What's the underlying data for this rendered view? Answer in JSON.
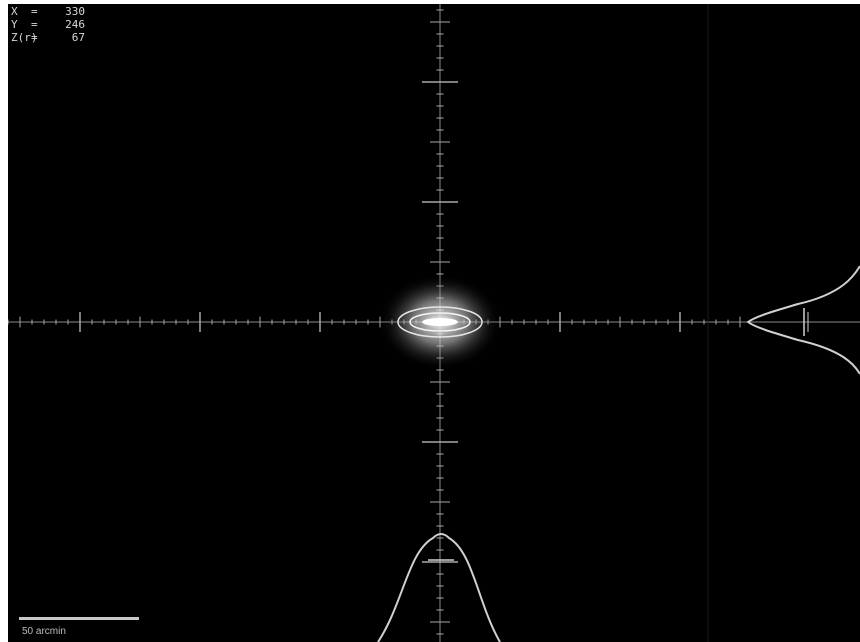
{
  "readout": [
    {
      "key": "X",
      "value": "330"
    },
    {
      "key": "Y",
      "value": "246"
    },
    {
      "key": "Z(r)",
      "value": "67"
    }
  ],
  "scale_bar": {
    "label": "50 arcmin"
  },
  "colors": {
    "background": "#000000",
    "lines": "#bdbdbd",
    "spot": "#ffffff"
  }
}
